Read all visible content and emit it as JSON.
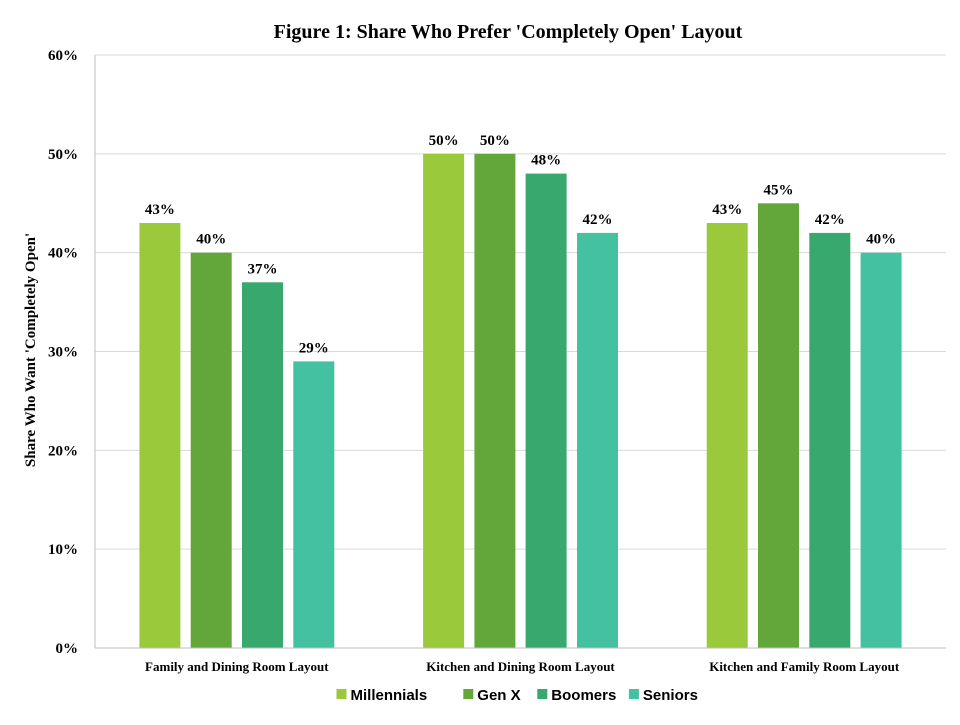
{
  "chart_data": {
    "type": "bar",
    "title": "Figure 1: Share Who Prefer 'Completely Open' Layout",
    "ylabel": "Share Who Want 'Completely Open'",
    "xlabel": "",
    "ylim": [
      0,
      60
    ],
    "yticks": [
      "0%",
      "10%",
      "20%",
      "30%",
      "40%",
      "50%",
      "60%"
    ],
    "grid": true,
    "legend_position": "bottom",
    "categories": [
      "Family and Dining Room Layout",
      "Kitchen and Dining Room Layout",
      "Kitchen and Family Room Layout"
    ],
    "series": [
      {
        "name": "Millennials",
        "color": "#9ACA3C",
        "values": [
          43,
          50,
          43
        ],
        "labels": [
          "43%",
          "50%",
          "43%"
        ]
      },
      {
        "name": "Gen X",
        "color": "#63A73B",
        "values": [
          40,
          50,
          45
        ],
        "labels": [
          "40%",
          "50%",
          "45%"
        ]
      },
      {
        "name": "Boomers",
        "color": "#38A86E",
        "values": [
          37,
          48,
          42
        ],
        "labels": [
          "37%",
          "48%",
          "42%"
        ]
      },
      {
        "name": "Seniors",
        "color": "#44C1A0",
        "values": [
          29,
          42,
          40
        ],
        "labels": [
          "29%",
          "42%",
          "40%"
        ]
      }
    ]
  }
}
